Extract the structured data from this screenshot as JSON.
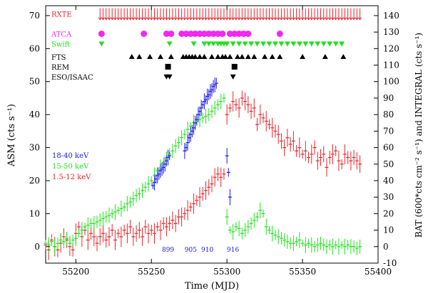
{
  "chart_data": {
    "type": "scatter",
    "title": "",
    "xlabel": "Time (MJD)",
    "ylabel_left": "ASM (cts s⁻¹)",
    "ylabel_right": "BAT (600*cts cm⁻² s⁻¹) and INTEGRAL (cts s⁻¹)",
    "xlim": [
      55180,
      55400
    ],
    "ylim_left": [
      -5,
      73
    ],
    "ylim_right": [
      -10,
      146
    ],
    "xticks": [
      55200,
      55250,
      55300,
      55350,
      55400
    ],
    "yticks_left": [
      0,
      10,
      20,
      30,
      40,
      50,
      60,
      70
    ],
    "yticks_right": [
      -10,
      0,
      10,
      20,
      30,
      40,
      50,
      60,
      70,
      80,
      90,
      100,
      110,
      120,
      130,
      140
    ],
    "colors": {
      "red": "#e8242b",
      "green": "#22e01d",
      "blue": "#1a1ae0",
      "magenta": "#f029f0",
      "black": "#000000"
    },
    "series": [
      {
        "name": "1.5-12 keV",
        "axis": "left",
        "color": "#e8242b",
        "x": [
          55180,
          55182,
          55184,
          55186,
          55188,
          55190,
          55192,
          55194,
          55196,
          55198,
          55200,
          55202,
          55204,
          55206,
          55208,
          55210,
          55212,
          55214,
          55216,
          55218,
          55220,
          55222,
          55224,
          55226,
          55228,
          55230,
          55232,
          55234,
          55236,
          55238,
          55240,
          55242,
          55244,
          55246,
          55248,
          55250,
          55252,
          55254,
          55256,
          55258,
          55260,
          55262,
          55264,
          55266,
          55268,
          55270,
          55272,
          55274,
          55276,
          55278,
          55280,
          55282,
          55284,
          55286,
          55288,
          55290,
          55292,
          55294,
          55296,
          55298,
          55300,
          55302,
          55304,
          55306,
          55308,
          55310,
          55312,
          55314,
          55316,
          55318,
          55320,
          55322,
          55324,
          55326,
          55328,
          55330,
          55332,
          55334,
          55336,
          55338,
          55340,
          55342,
          55344,
          55346,
          55348,
          55350,
          55352,
          55354,
          55356,
          55358,
          55360,
          55362,
          55364,
          55366,
          55368,
          55370,
          55372,
          55374,
          55376,
          55378,
          55380,
          55382,
          55384,
          55386,
          55388
        ],
        "y": [
          0.5,
          -1,
          2,
          0,
          -1,
          1,
          3,
          2,
          0,
          -1,
          4,
          6,
          3,
          5,
          2,
          4,
          3,
          1,
          3,
          4,
          2,
          3,
          5,
          2,
          4,
          3,
          5,
          4,
          6,
          3,
          4,
          5,
          3,
          6,
          4,
          5,
          4,
          6,
          5,
          7,
          6,
          7,
          8,
          7,
          9,
          9,
          10,
          11,
          12,
          13,
          14,
          15,
          16,
          17,
          18,
          19,
          21,
          22,
          21,
          22,
          40,
          42,
          44,
          43,
          42,
          45,
          44,
          43,
          41,
          42,
          37,
          40,
          39,
          38,
          37,
          36,
          35,
          34,
          32,
          30,
          33,
          31,
          32,
          29,
          30,
          28,
          29,
          27,
          28,
          30,
          26,
          27,
          28,
          24,
          27,
          28,
          29,
          26,
          25,
          28,
          27,
          26,
          27,
          26,
          25
        ]
      },
      {
        "name": "15-50 keV",
        "axis": "right",
        "color": "#22e01d",
        "x": [
          55180,
          55182,
          55184,
          55186,
          55188,
          55190,
          55192,
          55194,
          55196,
          55198,
          55200,
          55202,
          55204,
          55206,
          55208,
          55210,
          55212,
          55214,
          55216,
          55218,
          55220,
          55222,
          55224,
          55226,
          55228,
          55230,
          55232,
          55234,
          55236,
          55238,
          55240,
          55242,
          55244,
          55246,
          55248,
          55250,
          55252,
          55254,
          55256,
          55258,
          55260,
          55262,
          55264,
          55266,
          55268,
          55270,
          55272,
          55274,
          55276,
          55278,
          55280,
          55282,
          55284,
          55286,
          55288,
          55290,
          55292,
          55294,
          55296,
          55298,
          55300,
          55302,
          55304,
          55306,
          55308,
          55310,
          55312,
          55314,
          55316,
          55318,
          55320,
          55322,
          55324,
          55326,
          55328,
          55330,
          55332,
          55334,
          55336,
          55338,
          55340,
          55342,
          55344,
          55346,
          55348,
          55350,
          55352,
          55354,
          55356,
          55358,
          55360,
          55362,
          55364,
          55366,
          55368,
          55370,
          55372,
          55374,
          55376,
          55378,
          55380,
          55382,
          55384,
          55386,
          55388
        ],
        "y": [
          2,
          1,
          3,
          0,
          2,
          4,
          3,
          5,
          2,
          4,
          5,
          8,
          10,
          12,
          13,
          14,
          14,
          15,
          16,
          17,
          18,
          19,
          20,
          21,
          22,
          23,
          24,
          26,
          27,
          29,
          31,
          32,
          34,
          36,
          38,
          40,
          43,
          46,
          48,
          51,
          53,
          56,
          58,
          61,
          63,
          66,
          68,
          71,
          73,
          75,
          76,
          77,
          78,
          79,
          80,
          82,
          84,
          86,
          88,
          90,
          18,
          10,
          9,
          12,
          11,
          8,
          10,
          12,
          14,
          16,
          18,
          22,
          20,
          12,
          10,
          8,
          7,
          6,
          5,
          4,
          3,
          2,
          2,
          3,
          4,
          2,
          1,
          2,
          1,
          0,
          1,
          2,
          1,
          0,
          1,
          0,
          1,
          0,
          1,
          0,
          1,
          0,
          0,
          -1,
          0
        ]
      },
      {
        "name": "18-40 keV",
        "axis": "right",
        "color": "#1a1ae0",
        "x": [
          55251,
          55252,
          55253,
          55254,
          55255,
          55256,
          55257,
          55258,
          55259,
          55260,
          55261,
          55262,
          55272,
          55273,
          55274,
          55275,
          55276,
          55277,
          55278,
          55279,
          55280,
          55281,
          55282,
          55283,
          55284,
          55285,
          55286,
          55287,
          55288,
          55289,
          55290,
          55291,
          55292,
          55293,
          55300,
          55301,
          55302
        ],
        "y": [
          37,
          39,
          41,
          43,
          44,
          46,
          47,
          48,
          50,
          52,
          54,
          55,
          58,
          60,
          63,
          66,
          68,
          70,
          72,
          75,
          77,
          80,
          82,
          84,
          86,
          88,
          89,
          91,
          92,
          94,
          95,
          97,
          98,
          99,
          55,
          45,
          30
        ]
      }
    ],
    "legend": [
      "18-40 keV",
      "15-50 keV",
      "1.5-12 keV"
    ],
    "legend_position": "middle-left",
    "integral_revolutions": [
      {
        "label": "899",
        "x": 55261
      },
      {
        "label": "905",
        "x": 55276
      },
      {
        "label": "910",
        "x": 55287
      },
      {
        "label": "916",
        "x": 55304
      }
    ],
    "observation_rows": [
      {
        "label": "RXTE",
        "color": "#e8242b",
        "marker": "down-arrow",
        "y_left": 70.5,
        "x": [
          55216,
          55218,
          55220,
          55222,
          55224,
          55226,
          55228,
          55230,
          55232,
          55234,
          55236,
          55238,
          55240,
          55242,
          55244,
          55246,
          55248,
          55250,
          55252,
          55254,
          55256,
          55258,
          55260,
          55262,
          55264,
          55266,
          55268,
          55270,
          55272,
          55274,
          55276,
          55278,
          55280,
          55282,
          55284,
          55286,
          55288,
          55290,
          55292,
          55294,
          55296,
          55298,
          55300,
          55302,
          55304,
          55306,
          55308,
          55310,
          55312,
          55314,
          55316,
          55318,
          55320,
          55322,
          55324,
          55326,
          55328,
          55330,
          55332,
          55334,
          55336,
          55338,
          55340,
          55342,
          55344,
          55346,
          55348,
          55350,
          55352,
          55354,
          55356,
          55358,
          55360,
          55362,
          55364,
          55366,
          55368,
          55370,
          55372,
          55374,
          55376,
          55378,
          55380,
          55382,
          55384,
          55386,
          55388
        ]
      },
      {
        "label": "ATCA",
        "color": "#f029f0",
        "marker": "circle",
        "y_left": 64.5,
        "x": [
          55217,
          55245,
          55260,
          55263,
          55270,
          55273,
          55276,
          55279,
          55282,
          55285,
          55288,
          55291,
          55294,
          55297,
          55302,
          55305,
          55308,
          55311,
          55314,
          55335
        ]
      },
      {
        "label": "Swift",
        "color": "#22e01d",
        "marker": "down-triangle",
        "y_left": 61.5,
        "x": [
          55217,
          55262,
          55278,
          55285,
          55288,
          55291,
          55294,
          55296,
          55298,
          55300,
          55304,
          55308,
          55312,
          55316,
          55320,
          55324,
          55328,
          55332,
          55336,
          55340,
          55344,
          55348,
          55352,
          55356,
          55360,
          55364,
          55368,
          55372,
          55376
        ]
      },
      {
        "label": "FTS",
        "color": "#000000",
        "marker": "up-triangle",
        "y_left": 57.5,
        "x": [
          55237,
          55242,
          55249,
          55256,
          55263,
          55271,
          55273,
          55275,
          55277,
          55279,
          55282,
          55285,
          55290,
          55294,
          55297,
          55299,
          55302,
          55307,
          55310,
          55314,
          55318,
          55325,
          55330,
          55335,
          55350,
          55365,
          55377
        ]
      },
      {
        "label": "REM",
        "color": "#000000",
        "marker": "square",
        "y_left": 54.5,
        "x": [
          55261,
          55305
        ]
      },
      {
        "label": "ESO/ISAAC",
        "color": "#000000",
        "marker": "down-triangle",
        "y_left": 51.5,
        "x": [
          55260,
          55262,
          55304
        ]
      }
    ]
  }
}
